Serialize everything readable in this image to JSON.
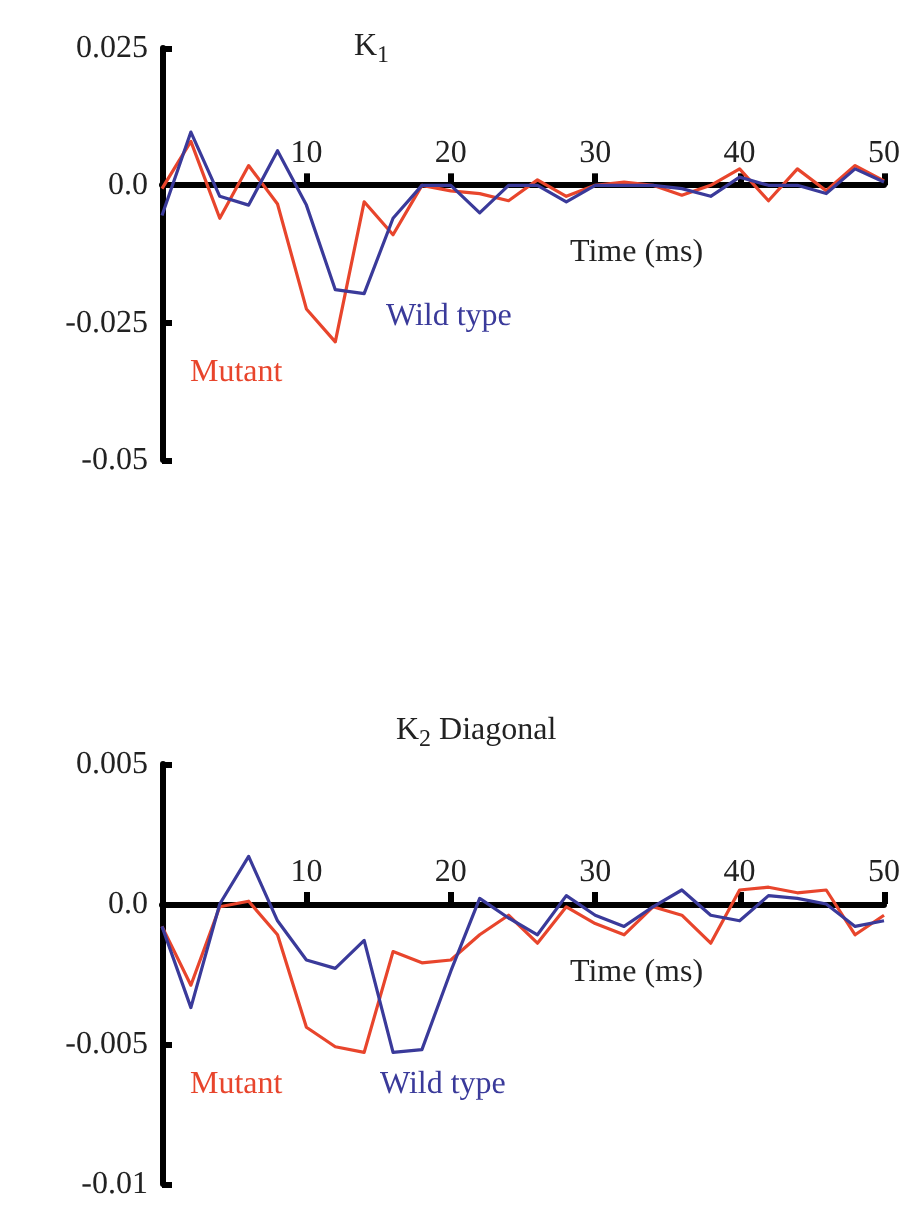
{
  "chart_data": [
    {
      "type": "line",
      "title": "K$_{1}$",
      "xlabel": "Time (ms)",
      "x": [
        0,
        2,
        4,
        6,
        8,
        10,
        12,
        14,
        16,
        18,
        20,
        22,
        24,
        26,
        28,
        30,
        32,
        34,
        36,
        38,
        40,
        42,
        44,
        46,
        48,
        50
      ],
      "series": [
        {
          "name": "Mutant",
          "color": "#e8452c",
          "values": [
            -0.0006,
            0.008,
            -0.006,
            0.0036,
            -0.0034,
            -0.0225,
            -0.0285,
            -0.003,
            -0.009,
            0,
            -0.001,
            -0.0015,
            -0.0028,
            0.001,
            -0.002,
            0,
            0.0006,
            0,
            -0.0018,
            0,
            0.003,
            -0.0028,
            0.003,
            -0.001,
            0.0036,
            0.0008
          ]
        },
        {
          "name": "Wild type",
          "color": "#3a3a9a",
          "values": [
            -0.0055,
            0.0097,
            -0.002,
            -0.0036,
            0.0063,
            -0.0036,
            -0.019,
            -0.0197,
            -0.006,
            0,
            0,
            -0.005,
            0,
            0,
            -0.003,
            0,
            0,
            0,
            -0.0006,
            -0.002,
            0.0015,
            0,
            0,
            -0.0015,
            0.003,
            0.0006
          ]
        }
      ],
      "xlim": [
        0,
        50
      ],
      "xticks": [
        10,
        20,
        30,
        40,
        50
      ],
      "ylim": [
        -0.05,
        0.025
      ],
      "yticks": [
        -0.05,
        -0.025,
        {
          "value": 0,
          "label": "0.0"
        },
        0.025
      ],
      "grid": false,
      "legend": false,
      "marker": "none",
      "line_style": "solid"
    },
    {
      "type": "line",
      "title": "K$_{2}$ Diagonal",
      "xlabel": "Time (ms)",
      "x": [
        0,
        2,
        4,
        6,
        8,
        10,
        12,
        14,
        16,
        18,
        20,
        22,
        24,
        26,
        28,
        30,
        32,
        34,
        36,
        38,
        40,
        42,
        44,
        46,
        48,
        50
      ],
      "series": [
        {
          "name": "Mutant",
          "color": "#e8452c",
          "values": [
            -0.0008,
            -0.0029,
            -0.0001,
            0.0001,
            -0.0011,
            -0.0044,
            -0.0051,
            -0.0053,
            -0.0017,
            -0.0021,
            -0.002,
            -0.0011,
            -0.0004,
            -0.0014,
            -0.0001,
            -0.0007,
            -0.0011,
            -0.0001,
            -0.0004,
            -0.0014,
            0.0005,
            0.0006,
            0.0004,
            0.0005,
            -0.0011,
            -0.0004
          ]
        },
        {
          "name": "Wild type",
          "color": "#3a3a9a",
          "values": [
            -0.0008,
            -0.0037,
            0,
            0.0017,
            -0.0006,
            -0.002,
            -0.0023,
            -0.0013,
            -0.0053,
            -0.0052,
            -0.0024,
            0.0002,
            -0.0005,
            -0.0011,
            0.0003,
            -0.0004,
            -0.0008,
            -0.0001,
            0.0005,
            -0.0004,
            -0.0006,
            0.0003,
            0.0002,
            0,
            -0.0008,
            -0.0006
          ]
        }
      ],
      "xlim": [
        0,
        50
      ],
      "xticks": [
        10,
        20,
        30,
        40,
        50
      ],
      "ylim": [
        -0.01,
        0.005
      ],
      "yticks": [
        -0.01,
        -0.005,
        {
          "value": 0,
          "label": "0.0"
        },
        0.005
      ],
      "grid": false,
      "legend": false,
      "marker": "none",
      "line_style": "solid"
    }
  ]
}
